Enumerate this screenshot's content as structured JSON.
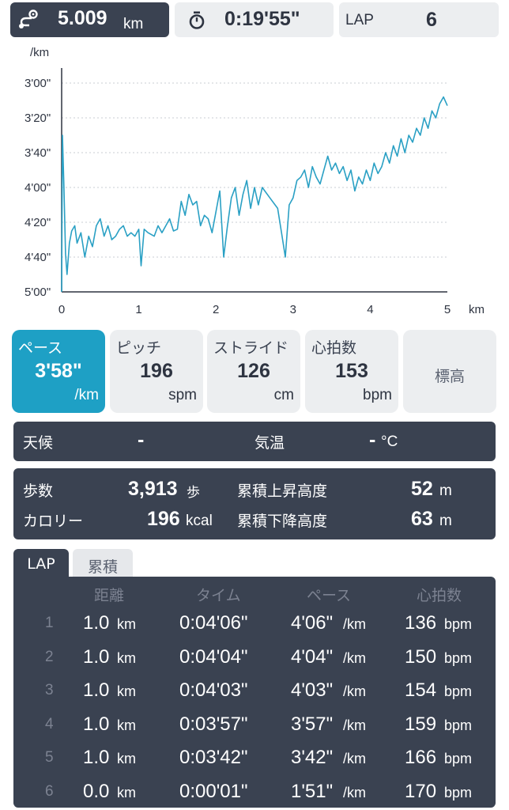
{
  "top": {
    "distance_value": "5.009",
    "distance_unit": "km",
    "elapsed_time": "0:19'55\"",
    "lap_label": "LAP",
    "lap_value": "6"
  },
  "chart_data": {
    "type": "line",
    "ylabel": "/km",
    "xlabel": "km",
    "x_ticks": [
      "0",
      "1",
      "2",
      "3",
      "4",
      "5"
    ],
    "y_ticks": [
      "3'00\"",
      "3'20\"",
      "3'40\"",
      "4'00\"",
      "4'20\"",
      "4'40\"",
      "5'00\""
    ],
    "y_reversed": true,
    "xlim": [
      0,
      5
    ],
    "ylim_seconds_per_km": [
      180,
      300
    ],
    "grid": true,
    "series_color": "#2aa0c4",
    "points": [
      [
        0,
        300
      ],
      [
        0.01,
        210
      ],
      [
        0.03,
        240
      ],
      [
        0.05,
        278
      ],
      [
        0.07,
        290
      ],
      [
        0.1,
        272
      ],
      [
        0.13,
        265
      ],
      [
        0.17,
        262
      ],
      [
        0.2,
        272
      ],
      [
        0.25,
        266
      ],
      [
        0.3,
        280
      ],
      [
        0.35,
        268
      ],
      [
        0.4,
        274
      ],
      [
        0.45,
        262
      ],
      [
        0.5,
        258
      ],
      [
        0.55,
        268
      ],
      [
        0.6,
        262
      ],
      [
        0.65,
        270
      ],
      [
        0.7,
        268
      ],
      [
        0.75,
        264
      ],
      [
        0.8,
        262
      ],
      [
        0.85,
        268
      ],
      [
        0.9,
        266
      ],
      [
        0.95,
        268
      ],
      [
        1.0,
        264
      ],
      [
        1.03,
        285
      ],
      [
        1.07,
        264
      ],
      [
        1.12,
        266
      ],
      [
        1.2,
        268
      ],
      [
        1.25,
        262
      ],
      [
        1.3,
        266
      ],
      [
        1.35,
        262
      ],
      [
        1.4,
        258
      ],
      [
        1.45,
        265
      ],
      [
        1.5,
        264
      ],
      [
        1.55,
        248
      ],
      [
        1.6,
        256
      ],
      [
        1.65,
        244
      ],
      [
        1.7,
        250
      ],
      [
        1.75,
        248
      ],
      [
        1.8,
        262
      ],
      [
        1.85,
        256
      ],
      [
        1.9,
        258
      ],
      [
        1.95,
        266
      ],
      [
        2.0,
        254
      ],
      [
        2.05,
        242
      ],
      [
        2.1,
        280
      ],
      [
        2.15,
        262
      ],
      [
        2.2,
        246
      ],
      [
        2.25,
        240
      ],
      [
        2.3,
        256
      ],
      [
        2.35,
        244
      ],
      [
        2.4,
        236
      ],
      [
        2.45,
        252
      ],
      [
        2.5,
        240
      ],
      [
        2.55,
        250
      ],
      [
        2.6,
        240
      ],
      [
        2.7,
        246
      ],
      [
        2.8,
        252
      ],
      [
        2.85,
        266
      ],
      [
        2.9,
        280
      ],
      [
        2.95,
        250
      ],
      [
        3.0,
        246
      ],
      [
        3.05,
        236
      ],
      [
        3.1,
        234
      ],
      [
        3.15,
        230
      ],
      [
        3.2,
        240
      ],
      [
        3.25,
        228
      ],
      [
        3.3,
        234
      ],
      [
        3.35,
        238
      ],
      [
        3.4,
        230
      ],
      [
        3.45,
        222
      ],
      [
        3.5,
        230
      ],
      [
        3.55,
        226
      ],
      [
        3.6,
        232
      ],
      [
        3.65,
        228
      ],
      [
        3.7,
        236
      ],
      [
        3.75,
        230
      ],
      [
        3.8,
        242
      ],
      [
        3.85,
        234
      ],
      [
        3.9,
        238
      ],
      [
        3.95,
        230
      ],
      [
        4.0,
        236
      ],
      [
        4.05,
        226
      ],
      [
        4.1,
        232
      ],
      [
        4.15,
        228
      ],
      [
        4.2,
        220
      ],
      [
        4.25,
        226
      ],
      [
        4.3,
        216
      ],
      [
        4.35,
        222
      ],
      [
        4.4,
        212
      ],
      [
        4.45,
        220
      ],
      [
        4.5,
        210
      ],
      [
        4.55,
        214
      ],
      [
        4.6,
        206
      ],
      [
        4.65,
        210
      ],
      [
        4.7,
        200
      ],
      [
        4.75,
        206
      ],
      [
        4.8,
        196
      ],
      [
        4.85,
        200
      ],
      [
        4.9,
        192
      ],
      [
        4.95,
        188
      ],
      [
        5.0,
        193
      ]
    ]
  },
  "metrics": [
    {
      "label": "ペース",
      "value": "3'58\"",
      "unit": "/km",
      "active": true
    },
    {
      "label": "ピッチ",
      "value": "196",
      "unit": "spm",
      "active": false
    },
    {
      "label": "ストライド",
      "value": "126",
      "unit": "cm",
      "active": false
    },
    {
      "label": "心拍数",
      "value": "153",
      "unit": "bpm",
      "active": false
    },
    {
      "label": "標高",
      "active": false
    }
  ],
  "weather": {
    "label": "天候",
    "value": "-",
    "temp_label": "気温",
    "temp_value": "-",
    "temp_unit": "°C"
  },
  "stats": {
    "steps_label": "歩数",
    "steps_value": "3,913",
    "steps_unit": "歩",
    "calories_label": "カロリー",
    "calories_value": "196",
    "calories_unit": "kcal",
    "ascent_label": "累積上昇高度",
    "ascent_value": "52",
    "ascent_unit": "m",
    "descent_label": "累積下降高度",
    "descent_value": "63",
    "descent_unit": "m"
  },
  "lap_tabs": {
    "lap": "LAP",
    "cumulative": "累積"
  },
  "lap_table": {
    "headers": {
      "distance": "距離",
      "time": "タイム",
      "pace": "ペース",
      "heart": "心拍数"
    },
    "units": {
      "distance": "km",
      "pace": "/km",
      "heart": "bpm"
    },
    "rows": [
      {
        "n": "1",
        "distance": "1.0",
        "time": "0:04'06\"",
        "pace": "4'06\"",
        "heart": "136"
      },
      {
        "n": "2",
        "distance": "1.0",
        "time": "0:04'04\"",
        "pace": "4'04\"",
        "heart": "150"
      },
      {
        "n": "3",
        "distance": "1.0",
        "time": "0:04'03\"",
        "pace": "4'03\"",
        "heart": "154"
      },
      {
        "n": "4",
        "distance": "1.0",
        "time": "0:03'57\"",
        "pace": "3'57\"",
        "heart": "159"
      },
      {
        "n": "5",
        "distance": "1.0",
        "time": "0:03'42\"",
        "pace": "3'42\"",
        "heart": "166"
      },
      {
        "n": "6",
        "distance": "0.0",
        "time": "0:00'01\"",
        "pace": "1'51\"",
        "heart": "170"
      }
    ]
  }
}
